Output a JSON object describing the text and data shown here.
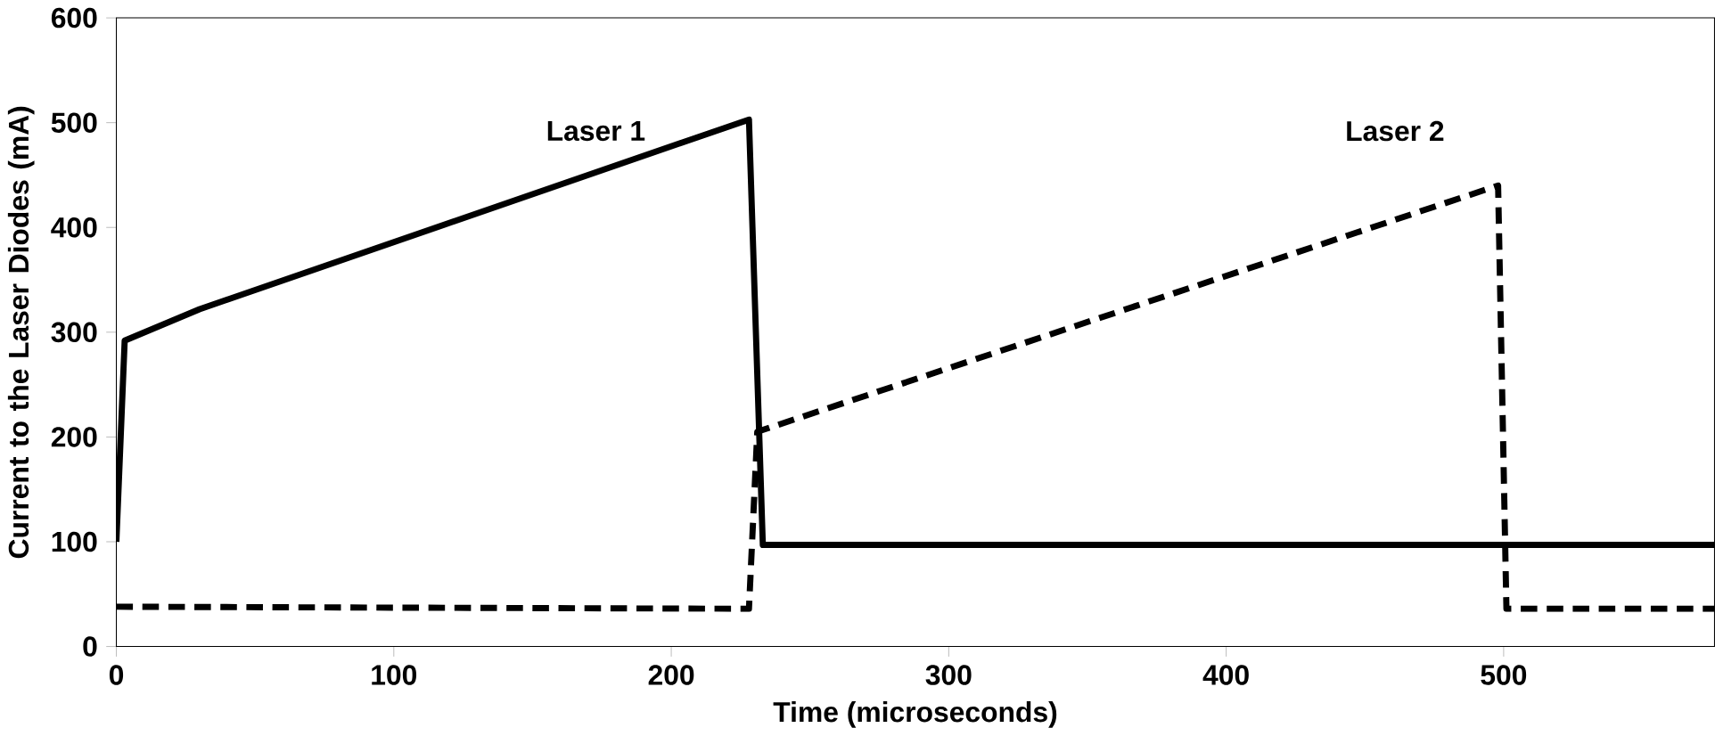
{
  "chart_data": {
    "type": "line",
    "xlabel": "Time (microseconds)",
    "ylabel": "Current to the Laser Diodes (mA)",
    "xlim": [
      0,
      576
    ],
    "xticks": [
      0,
      100,
      200,
      300,
      400,
      500
    ],
    "ylim": [
      0,
      600
    ],
    "yticks": [
      0,
      100,
      200,
      300,
      400,
      500,
      600
    ],
    "grid": false,
    "legend": false,
    "marker": "none",
    "series": [
      {
        "name": "Laser 1",
        "color": "#000000",
        "line_style": "solid",
        "x": [
          0,
          3,
          30,
          228,
          233,
          576
        ],
        "values": [
          100,
          292,
          322,
          503,
          97,
          97
        ]
      },
      {
        "name": "Laser 2",
        "color": "#000000",
        "line_style": "dashed",
        "x": [
          0,
          228,
          231,
          498,
          501,
          576
        ],
        "values": [
          38,
          36,
          205,
          440,
          36,
          36
        ]
      }
    ]
  }
}
